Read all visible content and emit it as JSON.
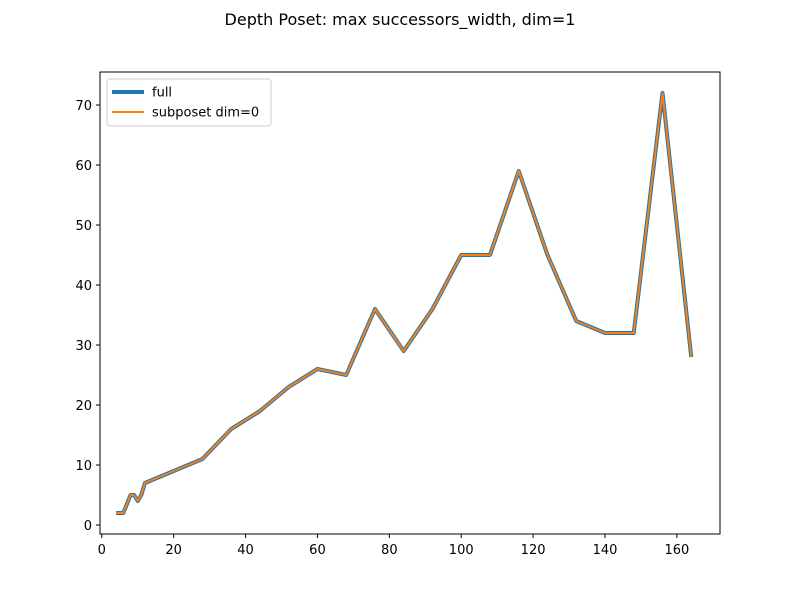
{
  "chart_data": {
    "type": "line",
    "title": "Depth Poset: max successors_width, dim=1",
    "xlabel": "",
    "ylabel": "",
    "xlim": [
      -0.5,
      172
    ],
    "ylim": [
      -1.5,
      75.5
    ],
    "xticks": [
      0,
      20,
      40,
      60,
      80,
      100,
      120,
      140,
      160
    ],
    "yticks": [
      0,
      10,
      20,
      30,
      40,
      50,
      60,
      70
    ],
    "grid": false,
    "legend": "upper left",
    "series": [
      {
        "name": "full",
        "color": "#1f77b4",
        "x": [
          4,
          6,
          8,
          9,
          10,
          11,
          12,
          20,
          28,
          36,
          44,
          52,
          60,
          68,
          76,
          84,
          92,
          100,
          108,
          116,
          124,
          132,
          140,
          148,
          156,
          164
        ],
        "y": [
          2,
          2,
          5,
          5,
          4,
          5,
          7,
          9,
          11,
          16,
          19,
          23,
          26,
          25,
          36,
          29,
          36,
          45,
          45,
          59,
          45,
          34,
          32,
          32,
          72,
          28
        ]
      },
      {
        "name": "subposet dim=0",
        "color": "#ff7f0e",
        "x": [
          4,
          6,
          8,
          9,
          10,
          11,
          12,
          20,
          28,
          36,
          44,
          52,
          60,
          68,
          76,
          84,
          92,
          100,
          108,
          116,
          124,
          132,
          140,
          148,
          156,
          164
        ],
        "y": [
          2,
          2,
          5,
          5,
          4,
          5,
          7,
          9,
          11,
          16,
          19,
          23,
          26,
          25,
          36,
          29,
          36,
          45,
          45,
          59,
          45,
          34,
          32,
          32,
          72,
          28
        ]
      }
    ]
  }
}
